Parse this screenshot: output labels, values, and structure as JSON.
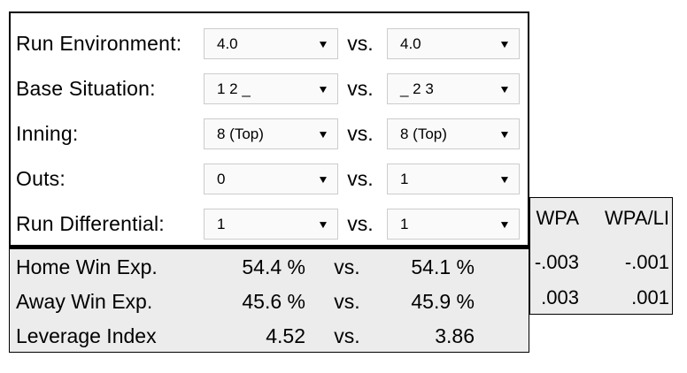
{
  "colors": {
    "panel_border": "#000000",
    "results_background": "#ececec",
    "dropdown_background": "#fafafa",
    "dropdown_border": "#cccccc",
    "text": "#000000"
  },
  "icons": {
    "dropdown_arrow": "▼"
  },
  "selectors": {
    "rows": [
      {
        "label": "Run Environment:",
        "left_value": "4.0",
        "vs": "vs.",
        "right_value": "4.0"
      },
      {
        "label": "Base Situation:",
        "left_value": "1 2 _",
        "vs": "vs.",
        "right_value": "_ 2 3"
      },
      {
        "label": "Inning:",
        "left_value": "8 (Top)",
        "vs": "vs.",
        "right_value": "8 (Top)"
      },
      {
        "label": "Outs:",
        "left_value": "0",
        "vs": "vs.",
        "right_value": "1"
      },
      {
        "label": "Run Differential:",
        "left_value": "1",
        "vs": "vs.",
        "right_value": "1"
      }
    ]
  },
  "results": {
    "rows": [
      {
        "label": "Home Win Exp.",
        "left_value": "54.4 %",
        "vs": "vs.",
        "right_value": "54.1 %"
      },
      {
        "label": "Away Win Exp.",
        "left_value": "45.6 %",
        "vs": "vs.",
        "right_value": "45.9 %"
      },
      {
        "label": "Leverage Index",
        "left_value": "4.52",
        "vs": "vs.",
        "right_value": "3.86"
      }
    ]
  },
  "wpa": {
    "headers": [
      "WPA",
      "WPA/LI"
    ],
    "rows": [
      {
        "wpa": "-.003",
        "wpa_li": "-.001"
      },
      {
        "wpa": ".003",
        "wpa_li": ".001"
      }
    ]
  }
}
